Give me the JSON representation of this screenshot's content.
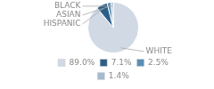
{
  "chart_data": {
    "type": "pie",
    "categories": [
      "WHITE",
      "HISPANIC",
      "ASIAN",
      "BLACK"
    ],
    "values": [
      89.0,
      7.1,
      2.5,
      1.4
    ],
    "value_labels": [
      "89.0%",
      "7.1%",
      "2.5%",
      "1.4%"
    ],
    "colors": [
      "#d0d9e4",
      "#2c5f87",
      "#5a8fb5",
      "#a4bad0"
    ],
    "legend": "bottom"
  }
}
